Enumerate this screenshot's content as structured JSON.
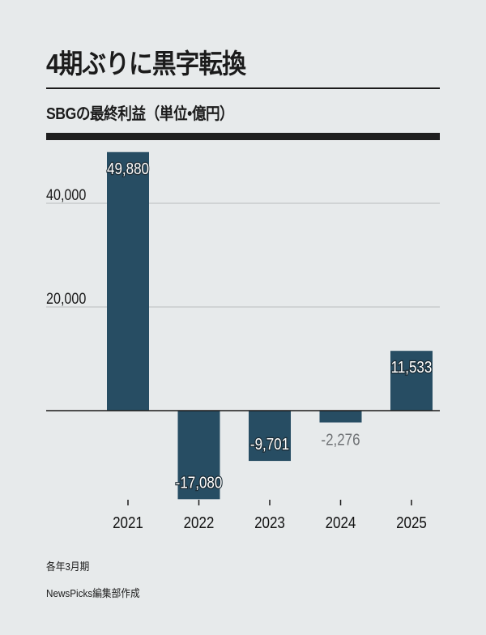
{
  "chart_data": {
    "type": "bar",
    "title": "4期ぶりに黒字転換",
    "subtitle": "SBGの最終利益（単位•億円）",
    "categories": [
      "2021",
      "2022",
      "2023",
      "2024",
      "2025"
    ],
    "values": [
      49880,
      -17080,
      -9701,
      -2276,
      11533
    ],
    "value_labels": [
      "49,880",
      "-17,080",
      "-9,701",
      "-2,276",
      "11,533"
    ],
    "yticks": [
      20000,
      40000
    ],
    "ytick_labels": [
      "20,000",
      "40,000"
    ],
    "ylim": [
      -17500,
      50000
    ],
    "grid": true,
    "xlabel": "",
    "ylabel": "",
    "colors": {
      "bar": "#274d63",
      "grid": "#b9bcbe",
      "background": "#e7eaeb"
    }
  },
  "footer": {
    "note": "各年3月期",
    "source": "NewsPicks編集部作成"
  }
}
